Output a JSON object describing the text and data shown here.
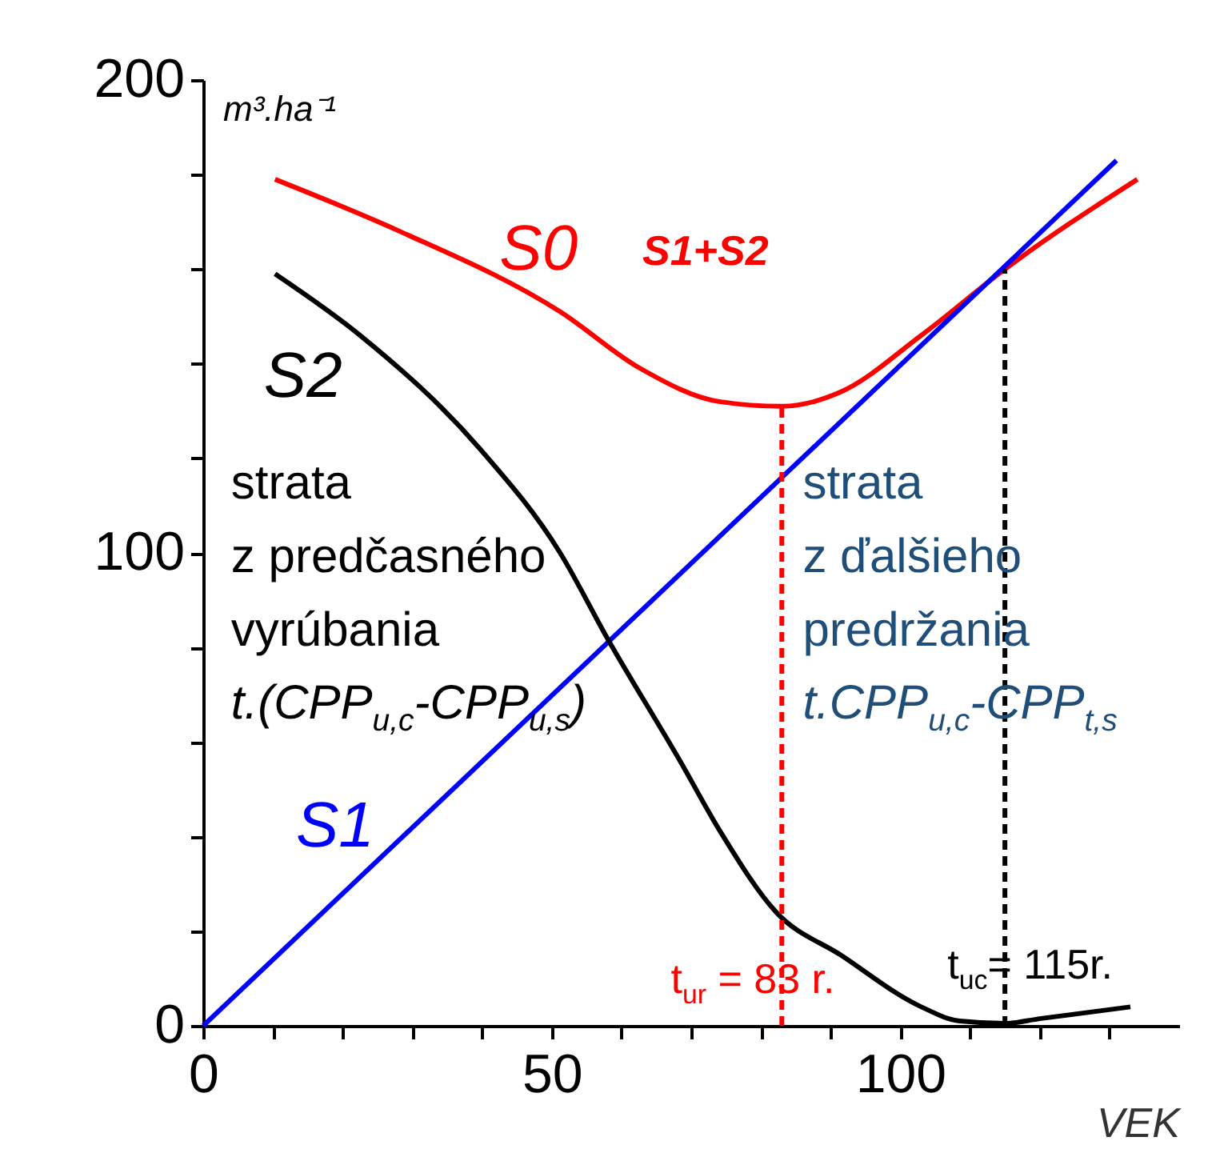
{
  "chart_data": {
    "type": "line",
    "xlabel": "VEK",
    "ylabel": "m³.ha⁻¹",
    "xlim": [
      0,
      140
    ],
    "ylim": [
      0,
      200
    ],
    "xticks": [
      0,
      {
        "value": 10,
        "label": null
      },
      {
        "value": 20,
        "label": null
      },
      {
        "value": 30,
        "label": null
      },
      {
        "value": 40,
        "label": null
      },
      50,
      {
        "value": 60,
        "label": null
      },
      {
        "value": 70,
        "label": null
      },
      {
        "value": 80,
        "label": null
      },
      {
        "value": 90,
        "label": null
      },
      100,
      {
        "value": 110,
        "label": null
      },
      {
        "value": 120,
        "label": null
      },
      {
        "value": 130,
        "label": null
      }
    ],
    "yticks": [
      0,
      {
        "value": 20,
        "label": null
      },
      {
        "value": 40,
        "label": null
      },
      {
        "value": 60,
        "label": null
      },
      {
        "value": 80,
        "label": null
      },
      100,
      {
        "value": 120,
        "label": null
      },
      {
        "value": 140,
        "label": null
      },
      {
        "value": 160,
        "label": null
      },
      {
        "value": 180,
        "label": null
      },
      200
    ],
    "series": [
      {
        "name": "S0",
        "color": "#ff0000",
        "x": [
          10.3,
          28.2,
          51.2,
          62.7,
          74,
          83,
          91.4,
          103,
          115,
          134
        ],
        "values": [
          179,
          168,
          151,
          139,
          132,
          131,
          134,
          146,
          160,
          179
        ]
      },
      {
        "name": "S1",
        "color": "#0000ff",
        "x": [
          0,
          131
        ],
        "values": [
          0,
          183
        ]
      },
      {
        "name": "S2",
        "color": "#000000",
        "x": [
          10.3,
          22.5,
          39.7,
          51.2,
          58.1,
          68.4,
          74.2,
          82.2,
          91.4,
          103,
          108.5,
          115,
          120,
          133
        ],
        "values": [
          159,
          146,
          122,
          100,
          81.6,
          56,
          41,
          24,
          15,
          4,
          1,
          0.5,
          1.5,
          4
        ]
      }
    ],
    "ref_lines": [
      {
        "axis": "x",
        "value": 83,
        "label": "t$_{ur}$ = 83 r.",
        "color": "#ff0000",
        "line_style": "dashed"
      },
      {
        "axis": "x",
        "value": 115,
        "label": "t$_{uc}$= 115r.",
        "color": "#000000",
        "line_style": "dashed"
      }
    ],
    "annotations": [
      "S1+S2",
      "strata\nz predčasného\nvyrúbania\nt.(CPP$_{u,c}$-CPP$_{u,s}$)",
      "strata\nz ďalšieho\npredržania\nt.CPP$_{u,c}$-CPP$_{t,s}$"
    ],
    "grid": false,
    "legend": false,
    "marker": "none",
    "line_style": "solid"
  }
}
